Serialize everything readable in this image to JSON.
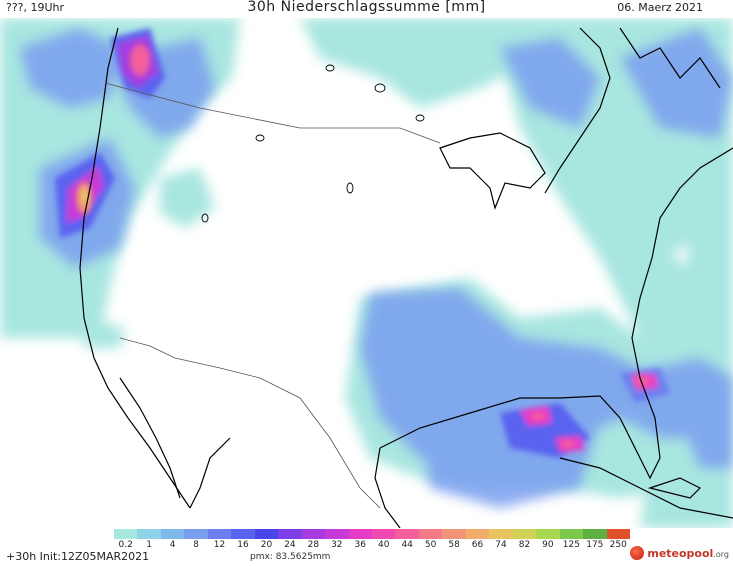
{
  "header": {
    "left": "???, 19Uhr",
    "title": "30h Niederschlagssumme [mm]",
    "date": "06. Maerz 2021"
  },
  "footer": {
    "run": "+30h Init:12Z05MAR2021",
    "pmx": "pmx: 83.5625mm"
  },
  "logo": {
    "name": "meteopool",
    "tld": ".org",
    "icon": "meteopool-logo-icon"
  },
  "legend": {
    "labels": [
      "0.2",
      "1",
      "4",
      "8",
      "12",
      "16",
      "20",
      "24",
      "28",
      "32",
      "36",
      "40",
      "44",
      "50",
      "58",
      "66",
      "74",
      "82",
      "90",
      "125",
      "175",
      "250"
    ],
    "colors": [
      "#a8e6e0",
      "#8fd3e8",
      "#7fb8ea",
      "#7a9ef0",
      "#6b7ff0",
      "#5a62f0",
      "#4a45e8",
      "#7d3fe8",
      "#a63ce0",
      "#c73ad8",
      "#e63ac8",
      "#f04ab0",
      "#f5609a",
      "#f47a88",
      "#f29478",
      "#f0ae6a",
      "#e8c460",
      "#cfd456",
      "#a8d850",
      "#7cc84a",
      "#5cb040",
      "#e0502a"
    ]
  }
}
